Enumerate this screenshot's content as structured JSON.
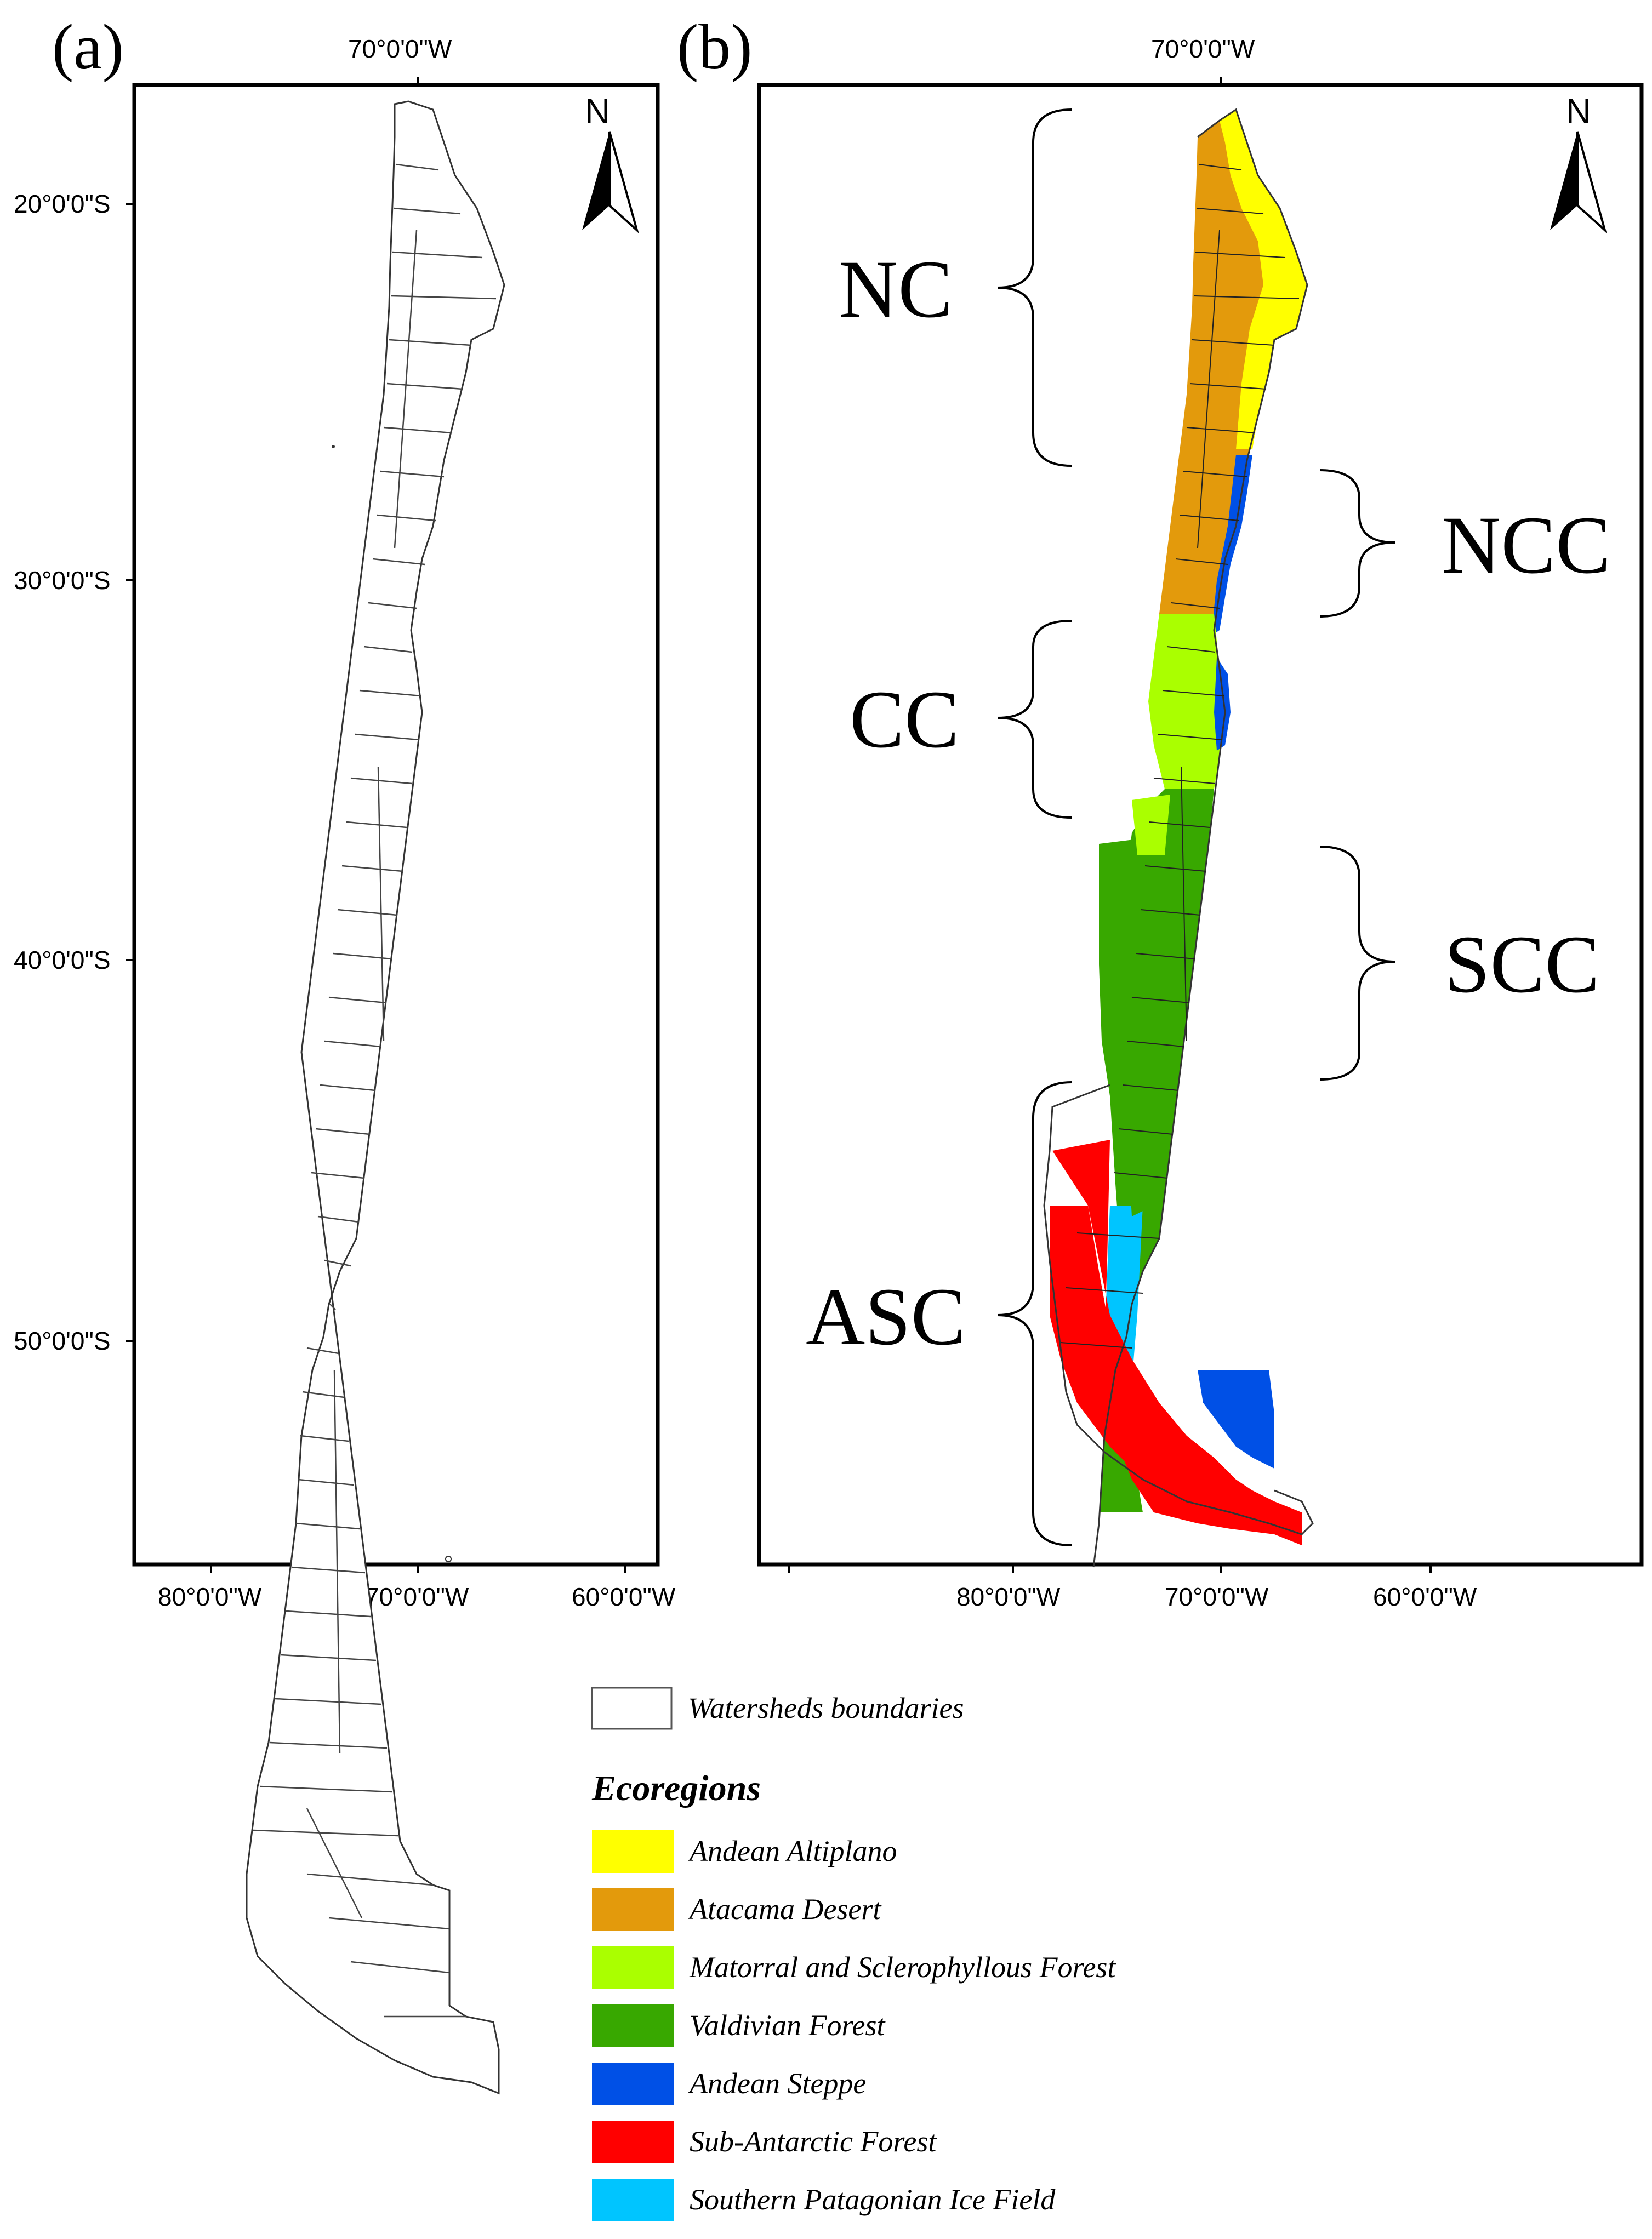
{
  "panels": {
    "a": {
      "label": "(a)"
    },
    "b": {
      "label": "(b)"
    }
  },
  "graticule": {
    "top_lon": "70°0'0\"W",
    "lat_labels": [
      "20°0'0\"S",
      "30°0'0\"S",
      "40°0'0\"S",
      "50°0'0\"S"
    ],
    "lon_labels": [
      "80°0'0\"W",
      "70°0'0\"W",
      "60°0'0\"W"
    ]
  },
  "north_arrow": {
    "label": "N"
  },
  "zones": [
    {
      "label": "NC",
      "side": "left"
    },
    {
      "label": "NCC",
      "side": "right"
    },
    {
      "label": "CC",
      "side": "left"
    },
    {
      "label": "SCC",
      "side": "right"
    },
    {
      "label": "ASC",
      "side": "left"
    }
  ],
  "legend": {
    "boundary_label": "Watersheds boundaries",
    "title": "Ecoregions",
    "items": [
      {
        "label": "Andean Altiplano",
        "color": "#ffff00"
      },
      {
        "label": "Atacama Desert",
        "color": "#e39a0c"
      },
      {
        "label": "Matorral and Sclerophyllous Forest",
        "color": "#aaff00"
      },
      {
        "label": "Valdivian Forest",
        "color": "#38a800"
      },
      {
        "label": "Andean Steppe",
        "color": "#0050e6"
      },
      {
        "label": "Sub-Antarctic Forest",
        "color": "#ff0000"
      },
      {
        "label": "Southern Patagonian Ice Field",
        "color": "#00c5ff"
      }
    ]
  }
}
